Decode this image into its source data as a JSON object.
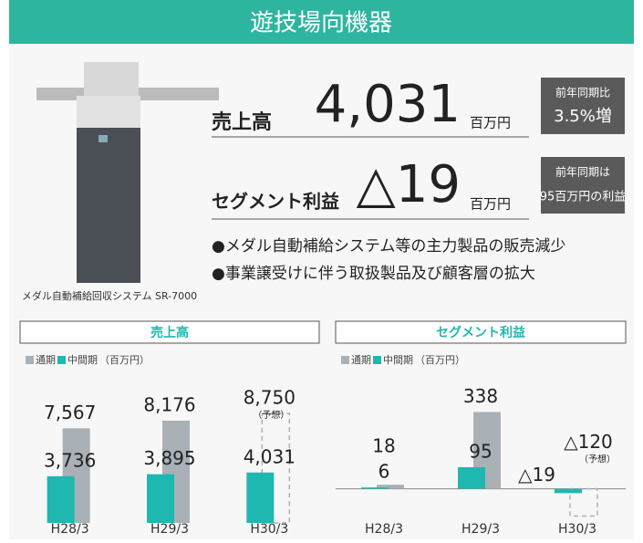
{
  "header": {
    "title": "遊技場向機器"
  },
  "product": {
    "caption": "メダル自動補給回収システム SR-7000"
  },
  "sales": {
    "label": "売上高",
    "value": "4,031",
    "unit": "百万円",
    "badge": [
      "前年同期比",
      "3.5%増"
    ]
  },
  "segment": {
    "label": "セグメント利益",
    "value": "△19",
    "unit": "百万円",
    "badge": [
      "前年同期は",
      "95百万円の利益"
    ]
  },
  "bullets": [
    "●メダル自動補給システム等の主力製品の販売減少",
    "●事業譲受けに伴う取扱製品及び顧客層の拡大"
  ],
  "chart_data": [
    {
      "type": "bar",
      "title": "売上高",
      "unit": "（百万円）",
      "categories": [
        "H28/3",
        "H29/3",
        "H30/3"
      ],
      "series": [
        {
          "name": "通期",
          "color": "#a9b0b6",
          "values": [
            7567,
            8176,
            8750
          ],
          "value_labels": [
            "7,567",
            "8,176",
            "8,750"
          ],
          "styles": [
            "solid",
            "solid",
            "dashed"
          ]
        },
        {
          "name": "中間期",
          "color": "#1fb8b0",
          "values": [
            3736,
            3895,
            4031
          ],
          "value_labels": [
            "3,736",
            "3,895",
            "4,031"
          ]
        }
      ],
      "annotation": "（予想）",
      "ylim": [
        0,
        10000
      ]
    },
    {
      "type": "bar",
      "title": "セグメント利益",
      "unit": "（百万円）",
      "categories": [
        "H28/3",
        "H29/3",
        "H30/3"
      ],
      "series": [
        {
          "name": "通期",
          "color": "#a9b0b6",
          "values": [
            18,
            338,
            -120
          ],
          "value_labels": [
            "18",
            "338",
            "△120"
          ],
          "styles": [
            "solid",
            "solid",
            "dashed"
          ]
        },
        {
          "name": "中間期",
          "color": "#1fb8b0",
          "values": [
            6,
            95,
            -19
          ],
          "value_labels": [
            "6",
            "95",
            "△19"
          ]
        }
      ],
      "annotation": "（予想）",
      "ylim": [
        -150,
        400
      ]
    }
  ]
}
